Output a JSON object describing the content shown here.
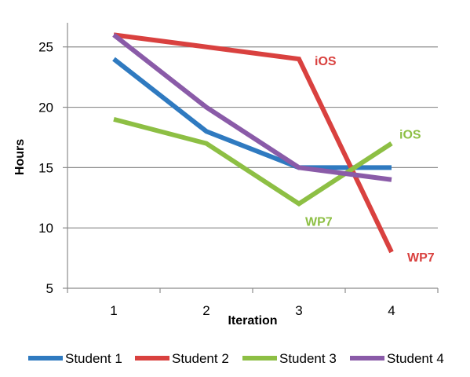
{
  "chart_data": {
    "type": "line",
    "xlabel": "Iteration",
    "ylabel": "Hours",
    "categories": [
      "1",
      "2",
      "3",
      "4"
    ],
    "ylim": [
      5,
      27
    ],
    "yticks": [
      5,
      10,
      15,
      20,
      25
    ],
    "grid": true,
    "legend_position": "bottom",
    "series": [
      {
        "name": "Student 1",
        "color": "#2f7ac0",
        "values": [
          24,
          18,
          15,
          15
        ]
      },
      {
        "name": "Student 2",
        "color": "#d9413f",
        "values": [
          26,
          25,
          24,
          8
        ]
      },
      {
        "name": "Student 3",
        "color": "#8dbf44",
        "values": [
          19,
          17,
          12,
          17
        ]
      },
      {
        "name": "Student 4",
        "color": "#8a5ba8",
        "values": [
          26,
          20,
          15,
          14
        ]
      }
    ],
    "annotations": [
      {
        "text": "iOS",
        "color": "#d9413f",
        "series": "Student 2",
        "x": "3",
        "y": 24
      },
      {
        "text": "WP7",
        "color": "#d9413f",
        "series": "Student 2",
        "x": "4",
        "y": 8
      },
      {
        "text": "iOS",
        "color": "#8dbf44",
        "series": "Student 3",
        "x": "4",
        "y": 17
      },
      {
        "text": "WP7",
        "color": "#8dbf44",
        "series": "Student 3",
        "x": "3",
        "y": 12
      }
    ]
  }
}
